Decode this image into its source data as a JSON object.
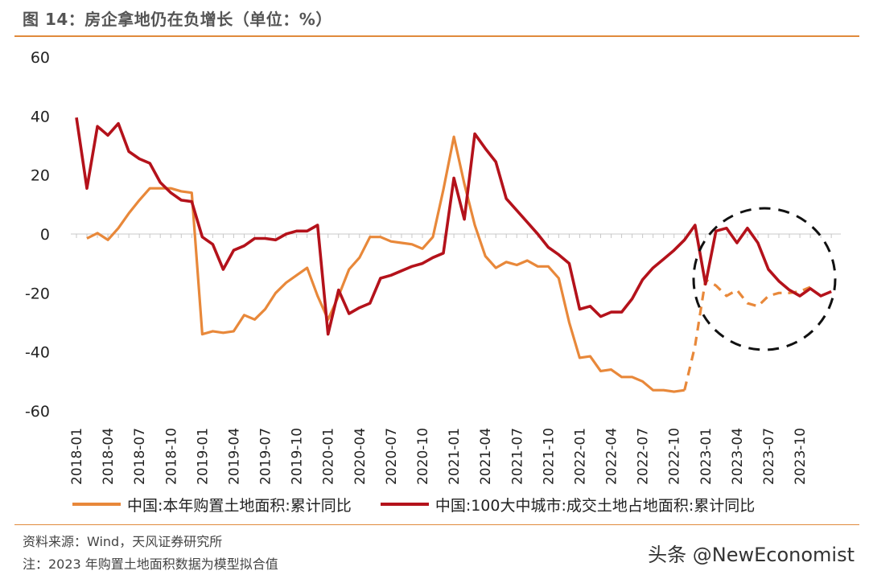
{
  "title": "图 14：房企拿地仍在负增长（单位：%）",
  "source": "资料来源：Wind，天风证券研究所",
  "note": "注：2023 年购置土地面积数据为模型拟合值",
  "watermark": "头条 @NewEconomist",
  "colors": {
    "orange": "#E8883A",
    "red": "#B4121B",
    "accent": "#E08A3C"
  },
  "chart_data": {
    "type": "line",
    "title": "房企拿地仍在负增长（单位：%）",
    "xlabel": "",
    "ylabel": "",
    "ylim": [
      -60,
      60
    ],
    "yticks": [
      60,
      40,
      20,
      0,
      -20,
      -40,
      -60
    ],
    "xtick_labels": [
      "2018-01",
      "2018-04",
      "2018-07",
      "2018-10",
      "2019-01",
      "2019-04",
      "2019-07",
      "2019-10",
      "2020-01",
      "2020-04",
      "2020-07",
      "2020-10",
      "2021-01",
      "2021-04",
      "2021-07",
      "2021-10",
      "2022-01",
      "2022-04",
      "2022-07",
      "2022-10",
      "2023-01",
      "2023-04",
      "2023-07",
      "2023-10"
    ],
    "start_month": "2018-01",
    "annotation": "dashed circle highlighting 2023 data",
    "series": [
      {
        "name": "中国:本年购置土地面积:累计同比",
        "color": "#E8883A",
        "points": [
          [
            1,
            -1.5
          ],
          [
            2,
            0.3
          ],
          [
            3,
            -2
          ],
          [
            4,
            2
          ],
          [
            5,
            7
          ],
          [
            6,
            11.5
          ],
          [
            7,
            15.5
          ],
          [
            8,
            15.5
          ],
          [
            9,
            15.5
          ],
          [
            10,
            14.5
          ],
          [
            11,
            14
          ],
          [
            12,
            -34
          ],
          [
            13,
            -33
          ],
          [
            14,
            -33.5
          ],
          [
            15,
            -33
          ],
          [
            16,
            -27.5
          ],
          [
            17,
            -29
          ],
          [
            18,
            -25.5
          ],
          [
            19,
            -20
          ],
          [
            20,
            -16.5
          ],
          [
            21,
            -14
          ],
          [
            22,
            -11.5
          ],
          [
            23,
            -21
          ],
          [
            24,
            -29
          ],
          [
            25,
            -21
          ],
          [
            26,
            -12
          ],
          [
            27,
            -8
          ],
          [
            28,
            -1
          ],
          [
            29,
            -1
          ],
          [
            30,
            -2.5
          ],
          [
            31,
            -3
          ],
          [
            32,
            -3.5
          ],
          [
            33,
            -5
          ],
          [
            34,
            -1
          ],
          [
            35,
            15
          ],
          [
            36,
            33
          ],
          [
            37,
            17
          ],
          [
            38,
            3
          ],
          [
            39,
            -7.5
          ],
          [
            40,
            -11.5
          ],
          [
            41,
            -9.5
          ],
          [
            42,
            -10.5
          ],
          [
            43,
            -9
          ],
          [
            44,
            -11
          ],
          [
            45,
            -11
          ],
          [
            46,
            -15
          ],
          [
            47,
            -30
          ],
          [
            48,
            -42
          ],
          [
            49,
            -41.5
          ],
          [
            50,
            -46.5
          ],
          [
            51,
            -46
          ],
          [
            52,
            -48.5
          ],
          [
            53,
            -48.5
          ],
          [
            54,
            -50
          ],
          [
            55,
            -53
          ],
          [
            56,
            -53
          ],
          [
            57,
            -53.5
          ],
          [
            58,
            -53
          ]
        ],
        "projected": [
          [
            58,
            -53
          ],
          [
            59,
            -38
          ],
          [
            60,
            -15.5
          ],
          [
            61,
            -17.5
          ],
          [
            62,
            -21
          ],
          [
            63,
            -19
          ],
          [
            64,
            -23.5
          ],
          [
            65,
            -24.5
          ],
          [
            66,
            -21
          ],
          [
            67,
            -20
          ],
          [
            68,
            -20
          ],
          [
            69,
            -19.5
          ],
          [
            70,
            -18
          ]
        ]
      },
      {
        "name": "中国:100大中城市:成交土地占地面积:累计同比",
        "color": "#B4121B",
        "points": [
          [
            0,
            39.5
          ],
          [
            1,
            15.5
          ],
          [
            2,
            36.5
          ],
          [
            3,
            33.5
          ],
          [
            4,
            37.5
          ],
          [
            5,
            28
          ],
          [
            6,
            25.5
          ],
          [
            7,
            24
          ],
          [
            8,
            17.5
          ],
          [
            9,
            14
          ],
          [
            10,
            11.5
          ],
          [
            11,
            11
          ],
          [
            12,
            -1
          ],
          [
            13,
            -3.5
          ],
          [
            14,
            -12
          ],
          [
            15,
            -5.5
          ],
          [
            16,
            -4
          ],
          [
            17,
            -1.5
          ],
          [
            18,
            -1.5
          ],
          [
            19,
            -2
          ],
          [
            20,
            0
          ],
          [
            21,
            1
          ],
          [
            22,
            1
          ],
          [
            23,
            3
          ],
          [
            24,
            -34
          ],
          [
            25,
            -19
          ],
          [
            26,
            -27
          ],
          [
            27,
            -25
          ],
          [
            28,
            -23.5
          ],
          [
            29,
            -15
          ],
          [
            30,
            -14
          ],
          [
            31,
            -12.5
          ],
          [
            32,
            -11
          ],
          [
            33,
            -10
          ],
          [
            34,
            -8
          ],
          [
            35,
            -6.5
          ],
          [
            36,
            19
          ],
          [
            37,
            5
          ],
          [
            38,
            34
          ],
          [
            39,
            29
          ],
          [
            40,
            24.5
          ],
          [
            41,
            12
          ],
          [
            42,
            8
          ],
          [
            43,
            4
          ],
          [
            44,
            0
          ],
          [
            45,
            -4.5
          ],
          [
            46,
            -7
          ],
          [
            47,
            -10
          ],
          [
            48,
            -25.5
          ],
          [
            49,
            -24.5
          ],
          [
            50,
            -28
          ],
          [
            51,
            -26.5
          ],
          [
            52,
            -26.5
          ],
          [
            53,
            -22
          ],
          [
            54,
            -15.5
          ],
          [
            55,
            -11.5
          ],
          [
            56,
            -8.5
          ],
          [
            57,
            -5.5
          ],
          [
            58,
            -2
          ],
          [
            59,
            3
          ],
          [
            60,
            -17
          ],
          [
            61,
            1
          ],
          [
            62,
            2
          ],
          [
            63,
            -3
          ],
          [
            64,
            2
          ],
          [
            65,
            -3
          ],
          [
            66,
            -12
          ],
          [
            67,
            -16
          ],
          [
            68,
            -19
          ],
          [
            69,
            -21
          ],
          [
            70,
            -18.5
          ],
          [
            71,
            -21
          ],
          [
            72,
            -19.5
          ]
        ]
      }
    ]
  }
}
